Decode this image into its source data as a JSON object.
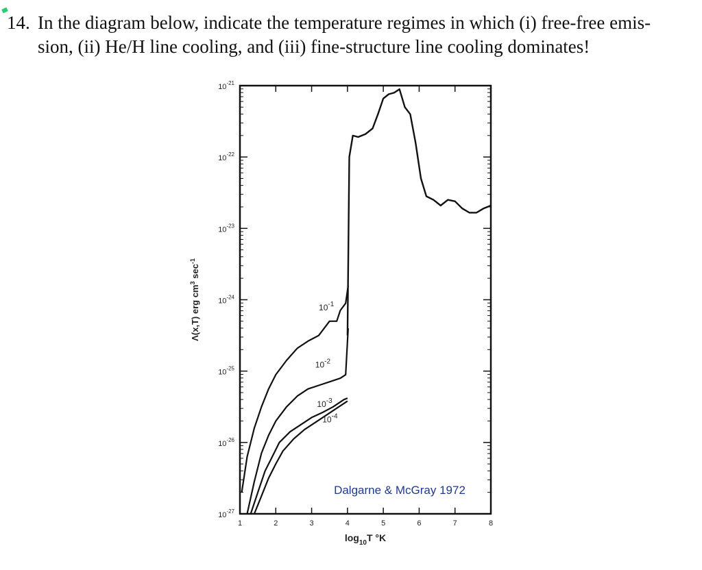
{
  "question": {
    "number": "14.",
    "line1": "In the diagram below, indicate the temperature regimes in which (i) free-free emis-",
    "line2": "sion, (ii) He/H line cooling, and (iii) fine-structure line cooling dominates!"
  },
  "chart_data": {
    "type": "line",
    "xlabel": {
      "pre": "log",
      "sub": "10",
      "post": "T °K"
    },
    "ylabel": {
      "lambda": "Λ(x,T) erg cm",
      "sup1": "3",
      "mid": " sec",
      "sup2": "-1"
    },
    "xlim": [
      1,
      8
    ],
    "ylim_log10": [
      -27,
      -21
    ],
    "y_scale": "log",
    "x_ticks": [
      {
        "value": 1,
        "label": "1"
      },
      {
        "value": 2,
        "label": "2"
      },
      {
        "value": 3,
        "label": "3"
      },
      {
        "value": 4,
        "label": "4"
      },
      {
        "value": 5,
        "label": "5"
      },
      {
        "value": 6,
        "label": "6"
      },
      {
        "value": 7,
        "label": "7"
      },
      {
        "value": 8,
        "label": "8"
      }
    ],
    "y_ticks": [
      {
        "exp": -21,
        "base": "10",
        "sup": "-21"
      },
      {
        "exp": -22,
        "base": "10",
        "sup": "-22"
      },
      {
        "exp": -23,
        "base": "10",
        "sup": "-23"
      },
      {
        "exp": -24,
        "base": "10",
        "sup": "-24"
      },
      {
        "exp": -25,
        "base": "10",
        "sup": "-25"
      },
      {
        "exp": -26,
        "base": "10",
        "sup": "-26"
      },
      {
        "exp": -27,
        "base": "10",
        "sup": "-27"
      }
    ],
    "annotation": "Dalgarne & McGray 1972",
    "high_T_curve": {
      "x": [
        4.0,
        4.05,
        4.15,
        4.3,
        4.5,
        4.7,
        4.85,
        5.0,
        5.15,
        5.3,
        5.45,
        5.6,
        5.75,
        5.9,
        6.05,
        6.2,
        6.4,
        6.6,
        6.8,
        7.0,
        7.2,
        7.4,
        7.6,
        7.8,
        8.0
      ],
      "log10_y": [
        -24.5,
        -22.0,
        -21.7,
        -21.72,
        -21.68,
        -21.6,
        -21.4,
        -21.18,
        -21.12,
        -21.1,
        -21.05,
        -21.3,
        -21.4,
        -21.8,
        -22.3,
        -22.55,
        -22.6,
        -22.68,
        -22.6,
        -22.62,
        -22.72,
        -22.78,
        -22.78,
        -22.72,
        -22.68
      ]
    },
    "series": [
      {
        "name": "10⁻¹",
        "label": {
          "base": "10",
          "sup": "-1"
        },
        "x": [
          1.05,
          1.2,
          1.4,
          1.6,
          1.8,
          2.0,
          2.3,
          2.6,
          2.9,
          3.2,
          3.5,
          3.7,
          3.8,
          3.95,
          4.02
        ],
        "log10_y": [
          -26.7,
          -26.2,
          -25.8,
          -25.5,
          -25.25,
          -25.05,
          -24.85,
          -24.68,
          -24.58,
          -24.5,
          -24.3,
          -24.3,
          -24.15,
          -24.05,
          -23.8
        ]
      },
      {
        "name": "10⁻²",
        "label": {
          "base": "10",
          "sup": "-2"
        },
        "x": [
          1.2,
          1.4,
          1.6,
          1.8,
          2.0,
          2.3,
          2.6,
          2.9,
          3.2,
          3.5,
          3.8,
          3.95,
          4.02
        ],
        "log10_y": [
          -27.0,
          -26.55,
          -26.15,
          -25.9,
          -25.7,
          -25.5,
          -25.35,
          -25.25,
          -25.2,
          -25.15,
          -25.1,
          -25.05,
          -24.4
        ]
      },
      {
        "name": "10⁻³",
        "label": {
          "base": "10",
          "sup": "-3"
        },
        "x": [
          1.3,
          1.5,
          1.7,
          1.9,
          2.1,
          2.4,
          2.7,
          3.0,
          3.3,
          3.6,
          3.9,
          4.0
        ],
        "log10_y": [
          -27.0,
          -26.7,
          -26.4,
          -26.2,
          -26.0,
          -25.85,
          -25.75,
          -25.65,
          -25.58,
          -25.5,
          -25.4,
          -25.38
        ]
      },
      {
        "name": "10⁻⁴",
        "label": {
          "base": "10",
          "sup": "-4"
        },
        "x": [
          1.4,
          1.6,
          1.8,
          2.0,
          2.2,
          2.5,
          2.8,
          3.1,
          3.4,
          3.7,
          4.0
        ],
        "log10_y": [
          -27.0,
          -26.75,
          -26.5,
          -26.3,
          -26.12,
          -25.95,
          -25.82,
          -25.72,
          -25.62,
          -25.52,
          -25.42
        ]
      }
    ]
  }
}
